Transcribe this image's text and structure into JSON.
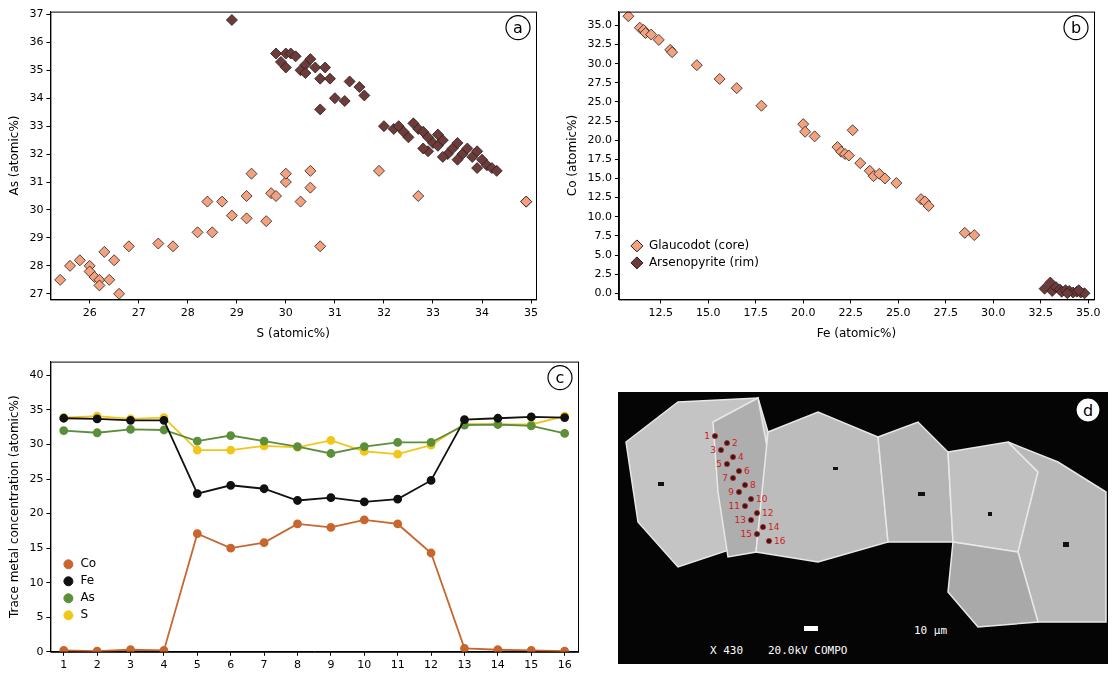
{
  "chart_data": [
    {
      "type": "scatter",
      "panel": "a",
      "x_label": "S (atomic%)",
      "y_label": "As (atomic%)",
      "xlim": [
        25.2,
        35.1
      ],
      "xticks": [
        26,
        27,
        28,
        29,
        30,
        31,
        32,
        33,
        34,
        35
      ],
      "ylim": [
        26.8,
        37.1
      ],
      "yticks": [
        27,
        28,
        29,
        30,
        31,
        32,
        33,
        34,
        35,
        36,
        37
      ],
      "grid": false,
      "series": [
        {
          "name": "Glaucodot (core)",
          "color": "#f2a27e",
          "marker": "diamond",
          "x": [
            25.4,
            25.6,
            25.8,
            26.0,
            26.0,
            26.1,
            26.2,
            26.2,
            26.3,
            26.4,
            26.5,
            26.6,
            26.8,
            27.4,
            27.7,
            28.2,
            28.4,
            28.5,
            28.7,
            28.9,
            29.2,
            29.2,
            29.3,
            29.6,
            29.7,
            29.8,
            30.0,
            30.0,
            30.3,
            30.5,
            30.5,
            30.7,
            31.9,
            32.7,
            34.9
          ],
          "y": [
            27.5,
            28.0,
            28.2,
            28.0,
            27.8,
            27.6,
            27.5,
            27.3,
            28.5,
            27.5,
            28.2,
            27.0,
            28.7,
            28.8,
            28.7,
            29.2,
            30.3,
            29.2,
            30.3,
            29.8,
            29.7,
            30.5,
            31.3,
            29.6,
            30.6,
            30.5,
            31.0,
            31.3,
            30.3,
            31.4,
            30.8,
            28.7,
            31.4,
            30.5,
            30.3
          ]
        },
        {
          "name": "Arsenopyrite (rim)",
          "color": "#6e3b3b",
          "marker": "diamond",
          "x": [
            28.9,
            29.8,
            29.9,
            30.0,
            30.0,
            30.1,
            30.2,
            30.3,
            30.4,
            30.4,
            30.5,
            30.6,
            30.7,
            30.8,
            30.7,
            30.9,
            31.0,
            31.2,
            31.3,
            31.5,
            31.6,
            32.0,
            32.2,
            32.3,
            32.4,
            32.5,
            32.6,
            32.7,
            32.8,
            32.9,
            33.0,
            32.9,
            33.1,
            33.2,
            33.3,
            33.2,
            33.4,
            33.5,
            33.6,
            33.7,
            33.8,
            33.9,
            34.0,
            34.1,
            34.2,
            34.3,
            33.9,
            34.9,
            33.1,
            32.8,
            33.5
          ],
          "y": [
            36.8,
            35.6,
            35.3,
            35.1,
            35.6,
            35.6,
            35.5,
            35.0,
            35.2,
            34.9,
            35.4,
            35.1,
            34.7,
            35.1,
            33.6,
            34.7,
            34.0,
            33.9,
            34.6,
            34.4,
            34.1,
            33.0,
            32.9,
            33.0,
            32.8,
            32.6,
            33.1,
            32.9,
            32.8,
            32.6,
            32.4,
            32.1,
            32.3,
            32.5,
            32.0,
            31.9,
            32.2,
            32.4,
            32.0,
            32.2,
            31.9,
            32.1,
            31.8,
            31.6,
            31.5,
            31.4,
            31.5,
            30.3,
            32.7,
            32.2,
            31.8
          ]
        }
      ]
    },
    {
      "type": "scatter",
      "panel": "b",
      "x_label": "Fe (atomic%)",
      "y_label": "Co (atomic%)",
      "xlim": [
        10.3,
        35.3
      ],
      "xticks": [
        {
          "value": 12.5,
          "label": "12.5"
        },
        {
          "value": 15,
          "label": "15.0"
        },
        {
          "value": 17.5,
          "label": "17.5"
        },
        {
          "value": 20,
          "label": "20.0"
        },
        {
          "value": 22.5,
          "label": "22.5"
        },
        {
          "value": 25,
          "label": "25.0"
        },
        {
          "value": 27.5,
          "label": "27.5"
        },
        {
          "value": 30,
          "label": "30.0"
        },
        {
          "value": 32.5,
          "label": "32.5"
        },
        {
          "value": 35,
          "label": "35.0"
        }
      ],
      "ylim": [
        -0.8,
        36.8
      ],
      "yticks": [
        {
          "value": 0,
          "label": "0.0"
        },
        {
          "value": 2.5,
          "label": "2.5"
        },
        {
          "value": 5,
          "label": "5.0"
        },
        {
          "value": 7.5,
          "label": "7.5"
        },
        {
          "value": 10,
          "label": "10.0"
        },
        {
          "value": 12.5,
          "label": "12.5"
        },
        {
          "value": 15,
          "label": "15.0"
        },
        {
          "value": 17.5,
          "label": "17.5"
        },
        {
          "value": 20,
          "label": "20.0"
        },
        {
          "value": 22.5,
          "label": "22.5"
        },
        {
          "value": 25,
          "label": "25.0"
        },
        {
          "value": 27.5,
          "label": "27.5"
        },
        {
          "value": 30,
          "label": "30.0"
        },
        {
          "value": 32.5,
          "label": "32.5"
        },
        {
          "value": 35,
          "label": "35.0"
        }
      ],
      "grid": false,
      "legend": "lower left",
      "series": [
        {
          "name": "Glaucodot (core)",
          "color": "#f2a27e",
          "marker": "diamond",
          "x": [
            10.8,
            11.4,
            11.6,
            11.7,
            12.0,
            12.4,
            13.0,
            13.1,
            14.4,
            15.6,
            16.5,
            17.8,
            20.0,
            20.1,
            20.6,
            21.8,
            22.0,
            22.2,
            22.4,
            22.6,
            23.0,
            23.5,
            23.7,
            24.0,
            24.3,
            24.9,
            26.2,
            26.4,
            26.6,
            28.5,
            29.0
          ],
          "y": [
            36.2,
            34.7,
            34.4,
            34.0,
            33.8,
            33.1,
            31.8,
            31.5,
            29.8,
            28.0,
            26.8,
            24.5,
            22.1,
            21.1,
            20.5,
            19.1,
            18.5,
            18.2,
            18.0,
            21.3,
            17.0,
            16.0,
            15.3,
            15.6,
            15.0,
            14.4,
            12.3,
            12.0,
            11.4,
            7.9,
            7.6
          ]
        },
        {
          "name": "Arsenopyrite (rim)",
          "color": "#6e3b3b",
          "marker": "diamond",
          "x": [
            32.7,
            33.0,
            33.1,
            33.3,
            33.5,
            33.6,
            33.8,
            34.0,
            34.2,
            34.4,
            34.6,
            34.8,
            33.9,
            34.5
          ],
          "y": [
            0.6,
            1.4,
            0.3,
            0.8,
            0.5,
            0.2,
            0.4,
            0.3,
            0.1,
            0.2,
            0.1,
            0.0,
            0.0,
            0.4
          ]
        }
      ]
    },
    {
      "type": "line",
      "panel": "c",
      "y_label": "Trace metal concentration (atomic%)",
      "x": [
        1,
        2,
        3,
        4,
        5,
        6,
        7,
        8,
        9,
        10,
        11,
        12,
        13,
        14,
        15,
        16
      ],
      "xlim": [
        0.6,
        16.4
      ],
      "xticks": [
        1,
        2,
        3,
        4,
        5,
        6,
        7,
        8,
        9,
        10,
        11,
        12,
        13,
        14,
        15,
        16
      ],
      "ylim": [
        0,
        42
      ],
      "yticks": [
        0,
        5,
        10,
        15,
        20,
        25,
        30,
        35,
        40
      ],
      "grid": false,
      "legend": "lower left",
      "marker": "circle",
      "series": [
        {
          "name": "Co",
          "color": "#c8662e",
          "values": [
            0.2,
            0.1,
            0.3,
            0.2,
            17.1,
            15.0,
            15.8,
            18.5,
            18.0,
            19.1,
            18.5,
            14.3,
            0.5,
            0.3,
            0.2,
            0.1
          ]
        },
        {
          "name": "Fe",
          "color": "#111111",
          "values": [
            33.8,
            33.7,
            33.5,
            33.5,
            22.9,
            24.1,
            23.6,
            21.9,
            22.3,
            21.7,
            22.1,
            24.8,
            33.6,
            33.8,
            34.0,
            33.9
          ]
        },
        {
          "name": "As",
          "color": "#5c8f3a",
          "values": [
            32.0,
            31.7,
            32.2,
            32.1,
            30.5,
            31.3,
            30.5,
            29.7,
            28.7,
            29.7,
            30.3,
            30.3,
            32.8,
            32.9,
            32.7,
            31.6
          ]
        },
        {
          "name": "S",
          "color": "#f1c61a",
          "values": [
            33.9,
            34.1,
            33.7,
            33.9,
            29.2,
            29.2,
            29.8,
            29.6,
            30.6,
            29.0,
            28.6,
            29.9,
            33.0,
            32.9,
            32.9,
            34.1
          ]
        }
      ]
    }
  ],
  "image_panel": {
    "panel": "d",
    "points": [
      "1",
      "2",
      "3",
      "4",
      "5",
      "6",
      "7",
      "8",
      "9",
      "10",
      "11",
      "12",
      "13",
      "14",
      "15",
      "16"
    ],
    "magnification": "X 430",
    "settings": "20.0kV COMPO",
    "scale_bar": "10 µm"
  }
}
